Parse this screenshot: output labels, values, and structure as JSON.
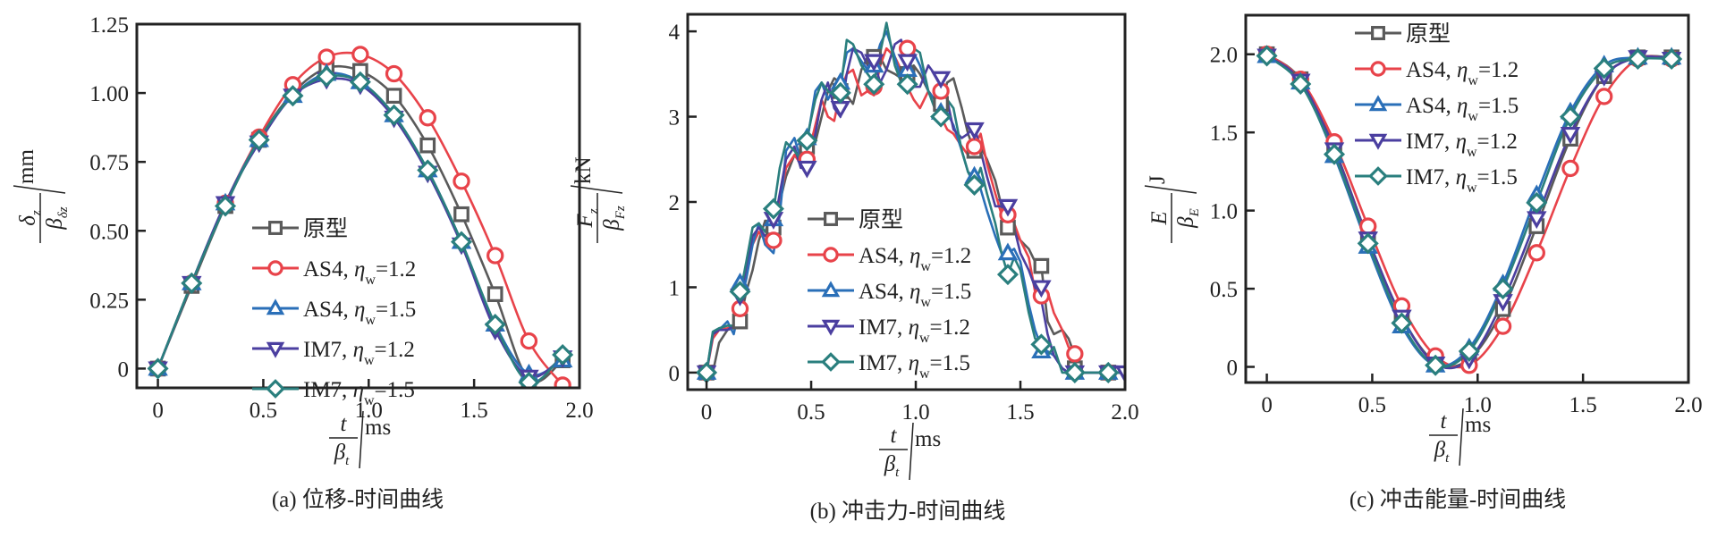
{
  "figure": {
    "series_styles": [
      {
        "name": "原型",
        "color": "#5a5a5a",
        "marker": "square"
      },
      {
        "name": "AS4, η_w=1.2",
        "color": "#e8434a",
        "marker": "circle"
      },
      {
        "name": "AS4, η_w=1.5",
        "color": "#2a6fb8",
        "marker": "triangle-up"
      },
      {
        "name": "IM7, η_w=1.2",
        "color": "#4b3fa0",
        "marker": "triangle-down"
      },
      {
        "name": "IM7, η_w=1.5",
        "color": "#2a7f7e",
        "marker": "diamond"
      }
    ],
    "legend_labels": [
      {
        "prefix": "原型",
        "eta": "",
        "sub": "",
        "value": ""
      },
      {
        "prefix": "AS4, ",
        "eta": "η",
        "sub": "w",
        "value": "=1.2"
      },
      {
        "prefix": "AS4, ",
        "eta": "η",
        "sub": "w",
        "value": "=1.5"
      },
      {
        "prefix": "IM7, ",
        "eta": "η",
        "sub": "w",
        "value": "=1.2"
      },
      {
        "prefix": "IM7, ",
        "eta": "η",
        "sub": "w",
        "value": "=1.5"
      }
    ]
  },
  "chart_data": [
    {
      "type": "line",
      "panel": "a",
      "caption": "(a) 位移-时间曲线",
      "title": "",
      "xlabel": {
        "num": "t",
        "den": "β",
        "den_sub": "t",
        "unit": "ms"
      },
      "ylabel": {
        "num": "δ",
        "num_sub": "z",
        "den": "β",
        "den_sub": "δz",
        "unit": "mm"
      },
      "xlim": [
        -0.1,
        2.0
      ],
      "ylim": [
        -0.07,
        1.25
      ],
      "xticks": [
        0,
        0.5,
        1.0,
        1.5,
        2.0
      ],
      "xtick_labels": [
        "0",
        "0.5",
        "1.0",
        "1.5",
        "2.0"
      ],
      "yticks": [
        0,
        0.25,
        0.5,
        0.75,
        1.0,
        1.25
      ],
      "ytick_labels": [
        "0",
        "0.25",
        "0.50",
        "0.75",
        "1.00",
        "1.25"
      ],
      "legend_position": "lower-center",
      "grid": false,
      "x": [
        0,
        0.16,
        0.32,
        0.48,
        0.64,
        0.8,
        0.96,
        1.12,
        1.28,
        1.44,
        1.6,
        1.76,
        1.92
      ],
      "series": [
        {
          "name": "原型",
          "values": [
            0,
            0.3,
            0.59,
            0.83,
            1.0,
            1.09,
            1.08,
            0.99,
            0.81,
            0.56,
            0.27,
            -0.04,
            0.03
          ]
        },
        {
          "name": "AS4, η_w=1.2",
          "values": [
            0,
            0.31,
            0.6,
            0.84,
            1.03,
            1.13,
            1.14,
            1.07,
            0.91,
            0.68,
            0.41,
            0.1,
            -0.06
          ]
        },
        {
          "name": "AS4, η_w=1.5",
          "values": [
            0,
            0.31,
            0.6,
            0.83,
            0.99,
            1.07,
            1.04,
            0.92,
            0.72,
            0.46,
            0.16,
            -0.02,
            0.03
          ]
        },
        {
          "name": "IM7, η_w=1.2",
          "values": [
            0,
            0.31,
            0.6,
            0.82,
            0.99,
            1.05,
            1.03,
            0.91,
            0.71,
            0.45,
            0.14,
            -0.03,
            0.04
          ]
        },
        {
          "name": "IM7, η_w=1.5",
          "values": [
            0,
            0.31,
            0.59,
            0.83,
            0.99,
            1.06,
            1.04,
            0.92,
            0.72,
            0.46,
            0.16,
            -0.05,
            0.05
          ]
        }
      ]
    },
    {
      "type": "line",
      "panel": "b",
      "caption": "(b) 冲击力-时间曲线",
      "title": "",
      "xlabel": {
        "num": "t",
        "den": "β",
        "den_sub": "t",
        "unit": "ms"
      },
      "ylabel": {
        "num": "F",
        "num_sub": "z",
        "den": "β",
        "den_sub": "Fz",
        "unit": "kN"
      },
      "xlim": [
        -0.09,
        2.0
      ],
      "ylim": [
        -0.2,
        4.2
      ],
      "xticks": [
        0,
        0.5,
        1.0,
        1.5,
        2.0
      ],
      "xtick_labels": [
        "0",
        "0.5",
        "1.0",
        "1.5",
        "2.0"
      ],
      "yticks": [
        0,
        1,
        2,
        3,
        4
      ],
      "ytick_labels": [
        "0",
        "1",
        "2",
        "3",
        "4"
      ],
      "legend_position": "lower-center",
      "grid": false,
      "marker_x": [
        0,
        0.16,
        0.32,
        0.48,
        0.64,
        0.8,
        0.96,
        1.12,
        1.28,
        1.44,
        1.6,
        1.76,
        1.92,
        2.0
      ],
      "x": [
        0,
        0.03,
        0.06,
        0.1,
        0.13,
        0.16,
        0.19,
        0.22,
        0.25,
        0.28,
        0.32,
        0.35,
        0.38,
        0.42,
        0.45,
        0.48,
        0.52,
        0.55,
        0.58,
        0.61,
        0.64,
        0.67,
        0.7,
        0.74,
        0.77,
        0.8,
        0.83,
        0.86,
        0.9,
        0.93,
        0.96,
        0.99,
        1.02,
        1.06,
        1.09,
        1.12,
        1.15,
        1.18,
        1.22,
        1.25,
        1.28,
        1.31,
        1.34,
        1.38,
        1.41,
        1.44,
        1.47,
        1.5,
        1.54,
        1.57,
        1.6,
        1.63,
        1.66,
        1.7,
        1.73,
        1.76,
        1.8,
        1.92,
        2.0
      ],
      "series": [
        {
          "name": "原型",
          "values": [
            0,
            0.0,
            0.35,
            0.5,
            0.52,
            0.6,
            0.95,
            1.2,
            1.55,
            1.78,
            1.7,
            2.0,
            2.3,
            2.55,
            2.6,
            2.55,
            2.7,
            3.0,
            3.3,
            3.45,
            3.4,
            3.25,
            3.15,
            3.55,
            3.7,
            3.75,
            3.7,
            3.55,
            3.5,
            3.45,
            3.55,
            3.6,
            3.5,
            3.3,
            3.2,
            3.15,
            3.4,
            3.45,
            3.1,
            2.8,
            2.6,
            2.65,
            2.5,
            2.25,
            1.95,
            1.7,
            1.65,
            1.55,
            1.45,
            1.3,
            1.25,
            0.6,
            0.45,
            0.5,
            0.4,
            0.2,
            0.0,
            0.0,
            0.0
          ]
        },
        {
          "name": "AS4, η_w=1.2",
          "values": [
            0,
            0.4,
            0.5,
            0.52,
            0.55,
            0.75,
            1.2,
            1.5,
            1.65,
            1.55,
            1.55,
            2.0,
            2.4,
            2.55,
            2.45,
            2.5,
            2.9,
            3.2,
            3.0,
            2.95,
            3.3,
            3.5,
            3.55,
            3.25,
            3.3,
            3.25,
            3.6,
            3.8,
            3.7,
            3.55,
            3.35,
            3.2,
            3.1,
            3.3,
            3.2,
            3.0,
            2.85,
            2.8,
            2.65,
            2.55,
            2.65,
            2.8,
            2.45,
            2.1,
            1.85,
            1.9,
            1.75,
            1.55,
            1.35,
            0.95,
            0.9,
            0.95,
            0.7,
            0.5,
            0.3,
            0.2,
            0.0,
            0.0,
            0.0
          ]
        },
        {
          "name": "AS4, η_w=1.5",
          "values": [
            0,
            0.45,
            0.5,
            0.6,
            0.45,
            0.8,
            1.1,
            1.5,
            1.75,
            1.5,
            1.4,
            1.85,
            2.6,
            2.75,
            2.5,
            2.7,
            3.3,
            3.4,
            3.2,
            3.35,
            3.4,
            3.75,
            3.8,
            3.65,
            3.55,
            3.6,
            3.85,
            4.0,
            3.7,
            3.45,
            3.55,
            3.75,
            3.6,
            3.3,
            3.2,
            3.0,
            3.05,
            2.9,
            2.6,
            2.35,
            2.3,
            2.15,
            1.9,
            1.6,
            1.4,
            1.4,
            1.45,
            1.3,
            0.8,
            0.5,
            0.3,
            0.25,
            0.2,
            0.05,
            0.0,
            0.0,
            0.0,
            0.0,
            0.0
          ]
        },
        {
          "name": "IM7, η_w=1.2",
          "values": [
            0,
            0.45,
            0.5,
            0.5,
            0.55,
            0.85,
            1.25,
            1.6,
            1.7,
            1.6,
            1.7,
            2.1,
            2.5,
            2.65,
            2.4,
            2.4,
            2.8,
            3.2,
            3.4,
            3.1,
            3.0,
            3.5,
            3.8,
            3.75,
            3.6,
            3.65,
            3.4,
            3.55,
            3.85,
            3.9,
            3.65,
            3.35,
            3.35,
            3.6,
            3.5,
            3.45,
            3.2,
            2.85,
            2.75,
            2.8,
            2.9,
            2.6,
            2.3,
            1.95,
            1.95,
            1.9,
            1.7,
            1.4,
            1.2,
            1.0,
            0.85,
            0.45,
            0.2,
            0.05,
            0.0,
            0.0,
            0.0,
            0.0,
            0.0
          ]
        },
        {
          "name": "IM7, η_w=1.5",
          "values": [
            0,
            0.48,
            0.52,
            0.55,
            0.55,
            0.92,
            1.3,
            1.7,
            1.75,
            1.65,
            1.9,
            2.4,
            2.7,
            2.6,
            2.5,
            2.75,
            3.2,
            3.4,
            3.3,
            3.25,
            3.3,
            3.9,
            3.85,
            3.6,
            3.5,
            3.4,
            3.75,
            4.1,
            3.6,
            3.4,
            3.4,
            3.8,
            3.75,
            3.3,
            3.1,
            3.0,
            3.2,
            3.1,
            2.6,
            2.35,
            2.2,
            2.4,
            2.1,
            1.75,
            1.4,
            1.15,
            1.35,
            1.2,
            0.7,
            0.4,
            0.35,
            0.2,
            0.3,
            0.0,
            0.0,
            0.0,
            0.0,
            0.0,
            0.0
          ]
        }
      ],
      "markers": [
        {
          "name": "原型",
          "values": [
            0,
            0.6,
            1.7,
            2.65,
            3.3,
            3.7,
            3.5,
            3.15,
            2.6,
            1.7,
            1.25,
            0.05,
            0.0
          ]
        },
        {
          "name": "AS4, η_w=1.2",
          "values": [
            0,
            0.75,
            1.55,
            2.5,
            3.3,
            3.35,
            3.8,
            3.3,
            2.65,
            1.85,
            0.9,
            0.22,
            0.0
          ]
        },
        {
          "name": "AS4, η_w=1.5",
          "values": [
            0,
            1.05,
            1.8,
            2.75,
            3.4,
            3.6,
            3.55,
            3.05,
            2.3,
            1.4,
            0.25,
            0.0,
            0.0
          ]
        },
        {
          "name": "IM7, η_w=1.2",
          "values": [
            0,
            0.9,
            1.8,
            2.4,
            3.1,
            3.65,
            3.65,
            3.45,
            2.85,
            1.95,
            1.0,
            0.0,
            0.0,
            0.0
          ]
        },
        {
          "name": "IM7, η_w=1.5",
          "values": [
            0,
            0.95,
            1.92,
            2.72,
            3.28,
            3.38,
            3.38,
            3.0,
            2.2,
            1.15,
            0.33,
            0.0,
            0.0
          ]
        }
      ]
    },
    {
      "type": "line",
      "panel": "c",
      "caption": "(c) 冲击能量-时间曲线",
      "title": "",
      "xlabel": {
        "num": "t",
        "den": "β",
        "den_sub": "t",
        "unit": "ms"
      },
      "ylabel": {
        "num": "E",
        "num_sub": "",
        "den": "β",
        "den_sub": "E",
        "unit": "J"
      },
      "xlim": [
        -0.1,
        2.0
      ],
      "ylim": [
        -0.1,
        2.25
      ],
      "xticks": [
        0,
        0.5,
        1.0,
        1.5,
        2.0
      ],
      "xtick_labels": [
        "0",
        "0.5",
        "1.0",
        "1.5",
        "2.0"
      ],
      "yticks": [
        0,
        0.5,
        1.0,
        1.5,
        2.0
      ],
      "ytick_labels": [
        "0",
        "0.5",
        "1.0",
        "1.5",
        "2.0"
      ],
      "legend_position": "top-center",
      "grid": false,
      "x": [
        0,
        0.16,
        0.32,
        0.48,
        0.64,
        0.8,
        0.96,
        1.12,
        1.28,
        1.44,
        1.6,
        1.76,
        1.92
      ],
      "series": [
        {
          "name": "原型",
          "values": [
            2.0,
            1.84,
            1.4,
            0.82,
            0.32,
            0.03,
            0.05,
            0.37,
            0.9,
            1.46,
            1.86,
            1.98,
            1.98
          ]
        },
        {
          "name": "AS4, η_w=1.2",
          "values": [
            2.0,
            1.84,
            1.44,
            0.9,
            0.39,
            0.07,
            0.01,
            0.26,
            0.73,
            1.27,
            1.73,
            1.97,
            1.97
          ]
        },
        {
          "name": "AS4, η_w=1.5",
          "values": [
            1.99,
            1.82,
            1.35,
            0.77,
            0.26,
            0.01,
            0.12,
            0.53,
            1.1,
            1.63,
            1.93,
            1.98,
            1.98
          ]
        },
        {
          "name": "IM7, η_w=1.2",
          "values": [
            1.99,
            1.83,
            1.39,
            0.82,
            0.32,
            0.02,
            0.05,
            0.42,
            0.95,
            1.49,
            1.86,
            1.98,
            1.97
          ]
        },
        {
          "name": "IM7, η_w=1.5",
          "values": [
            1.99,
            1.81,
            1.36,
            0.79,
            0.28,
            0.01,
            0.1,
            0.5,
            1.05,
            1.6,
            1.91,
            1.97,
            1.97
          ]
        }
      ]
    }
  ]
}
